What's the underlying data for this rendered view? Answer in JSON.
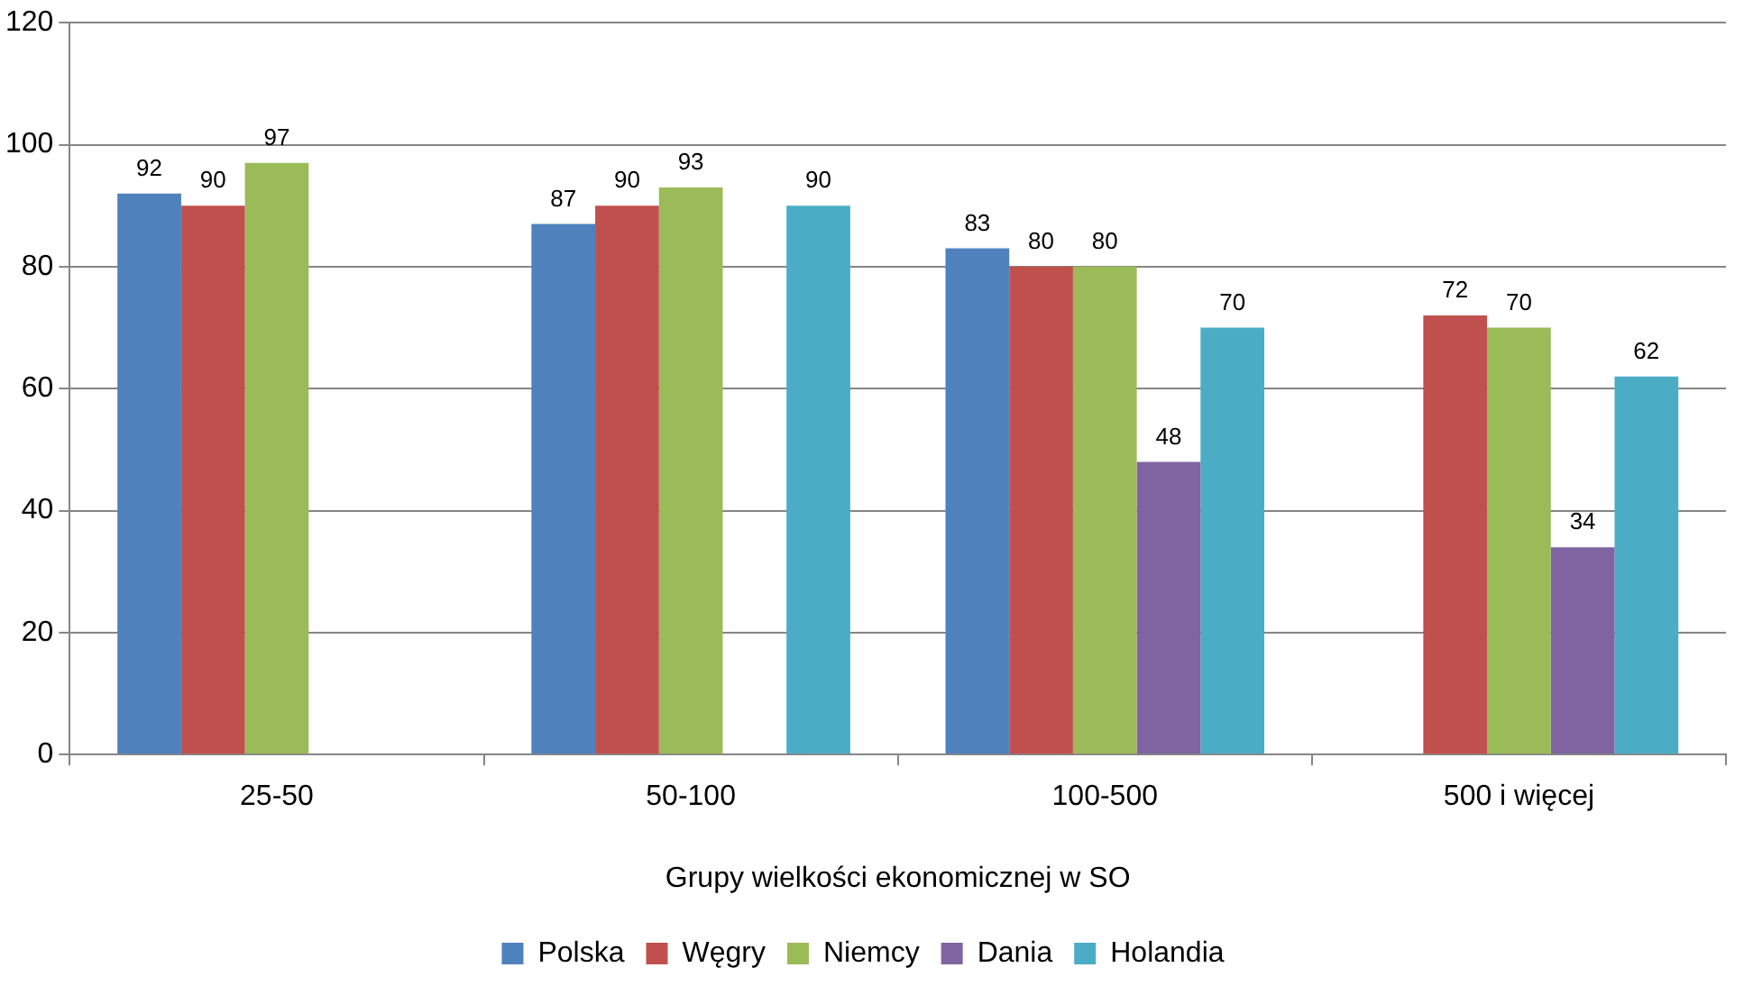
{
  "chart_data": {
    "type": "bar",
    "xlabel": "Grupy wielkości ekonomicznej w SO",
    "categories": [
      "25-50",
      "50-100",
      "100-500",
      "500 i więcej"
    ],
    "series": [
      {
        "name": "Polska",
        "color": "#4f81bd",
        "values": [
          92,
          87,
          83,
          null
        ]
      },
      {
        "name": "Węgry",
        "color": "#c0504d",
        "values": [
          90,
          90,
          80,
          72
        ]
      },
      {
        "name": "Niemcy",
        "color": "#9bbb59",
        "values": [
          97,
          93,
          80,
          70
        ]
      },
      {
        "name": "Dania",
        "color": "#8064a2",
        "values": [
          null,
          null,
          48,
          34
        ]
      },
      {
        "name": "Holandia",
        "color": "#4bacc6",
        "values": [
          null,
          90,
          70,
          62
        ]
      }
    ],
    "ylim": [
      0,
      120
    ],
    "yticks": [
      0,
      20,
      40,
      60,
      80,
      100,
      120
    ],
    "grid": "y",
    "legend": "bottom",
    "data_labels": true
  }
}
